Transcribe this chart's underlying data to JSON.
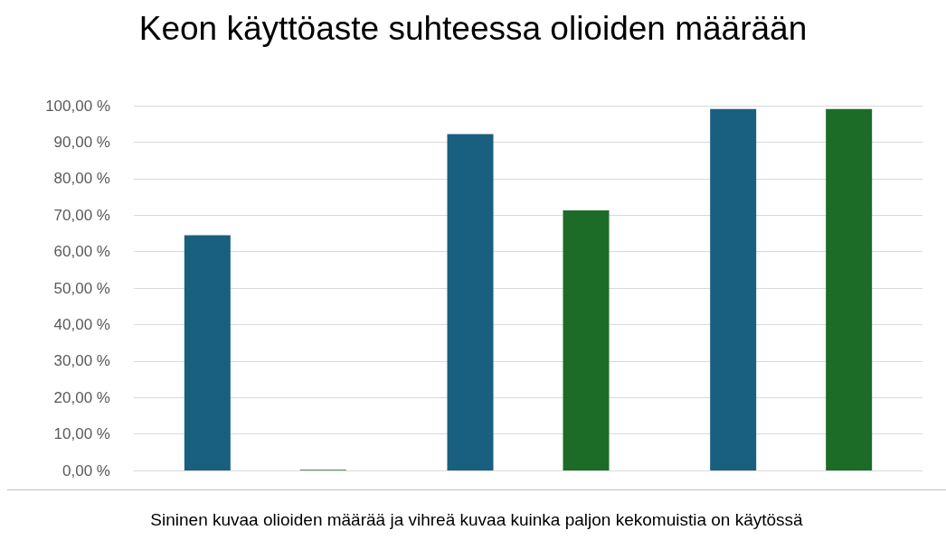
{
  "chart_data": {
    "type": "bar",
    "title": "Keon käyttöaste suhteessa olioiden määrään",
    "categories": [
      null,
      null,
      null
    ],
    "series": [
      {
        "color": "#195f80",
        "values": [
          64.5,
          92.2,
          99.1
        ]
      },
      {
        "color": "#1c6b27",
        "values": [
          0.2,
          71.3,
          99.1
        ]
      }
    ],
    "ylim": [
      0,
      100
    ],
    "yticks": [
      {
        "value": 0,
        "label": "0,00 %"
      },
      {
        "value": 10,
        "label": "10,00 %"
      },
      {
        "value": 20,
        "label": "20,00 %"
      },
      {
        "value": 30,
        "label": "30,00 %"
      },
      {
        "value": 40,
        "label": "40,00 %"
      },
      {
        "value": 50,
        "label": "50,00 %"
      },
      {
        "value": 60,
        "label": "60,00 %"
      },
      {
        "value": 70,
        "label": "70,00 %"
      },
      {
        "value": 80,
        "label": "80,00 %"
      },
      {
        "value": 90,
        "label": "90,00 %"
      },
      {
        "value": 100,
        "label": "100,00 %"
      }
    ],
    "grid": "y",
    "annotations": [
      "Sininen kuvaa olioiden määrää ja vihreä kuvaa kuinka paljon kekomuistia on käytössä"
    ]
  }
}
